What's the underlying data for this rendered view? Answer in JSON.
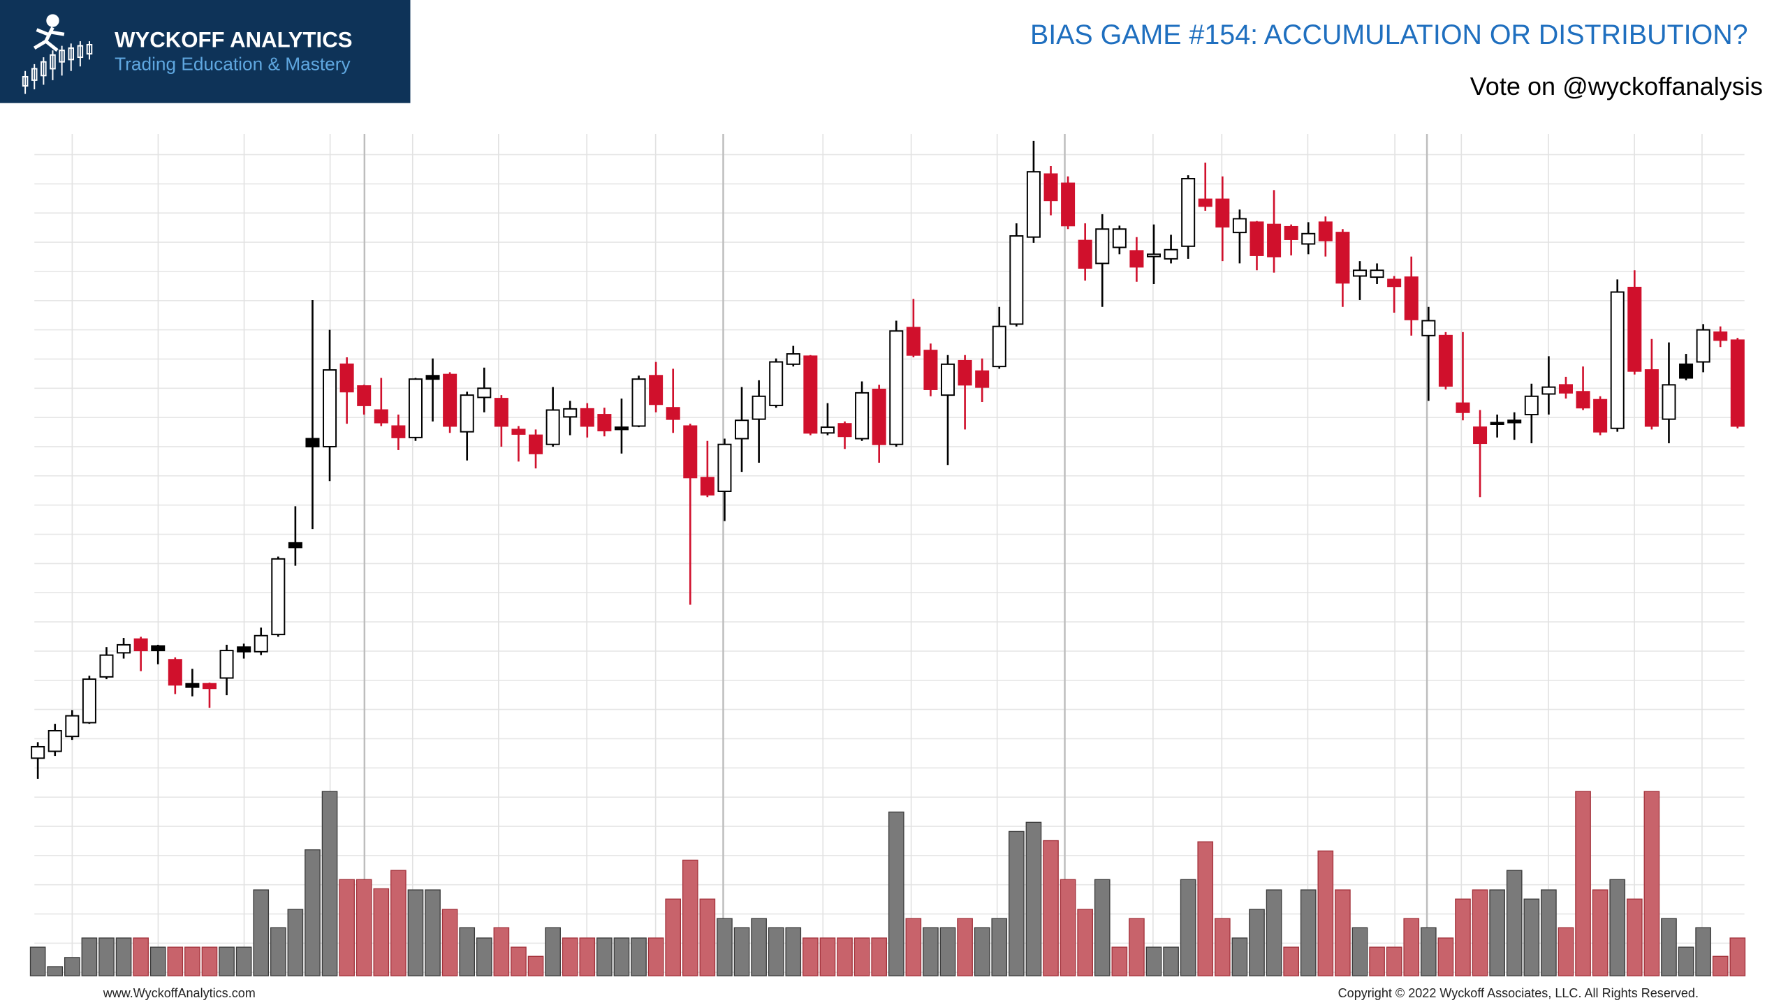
{
  "header": {
    "brand": "WYCKOFF ANALYTICS",
    "tagline": "Trading Education & Mastery",
    "title": "BIAS GAME #154: ACCUMULATION OR DISTRIBUTION?",
    "subtitle": "Vote on @wyckoffanalysis"
  },
  "footer": {
    "website": "www.WyckoffAnalytics.com",
    "copyright": "Copyright © 2022 Wyckoff Associates, LLC. All Rights Reserved."
  },
  "chart_data": {
    "type": "candlestick",
    "open": [
      38,
      44,
      57,
      69,
      109,
      130,
      142,
      136,
      124,
      103,
      103,
      108,
      135,
      131,
      146,
      226,
      317,
      310,
      382,
      363,
      342,
      328,
      318,
      372,
      373,
      323,
      353,
      352,
      325,
      320,
      312,
      336,
      343,
      338,
      327,
      328,
      372,
      344,
      328,
      283,
      271,
      317,
      334,
      346,
      382,
      389,
      322,
      330,
      317,
      360,
      312,
      414,
      394,
      355,
      385,
      376,
      380,
      417,
      493,
      548,
      540,
      490,
      470,
      484,
      481,
      476,
      474,
      485,
      526,
      526,
      497,
      506,
      504,
      502,
      487,
      506,
      497,
      459,
      458,
      456,
      458,
      407,
      407,
      348,
      327,
      331,
      333,
      338,
      356,
      364,
      358,
      351,
      326,
      449,
      377,
      334,
      382,
      384,
      410,
      403
    ],
    "high": [
      52,
      68,
      80,
      110,
      135,
      143,
      144,
      137,
      126,
      116,
      104,
      137,
      138,
      152,
      214,
      258,
      438,
      412,
      388,
      364,
      370,
      338,
      370,
      387,
      375,
      358,
      379,
      355,
      328,
      325,
      362,
      350,
      348,
      344,
      352,
      372,
      384,
      378,
      330,
      315,
      317,
      362,
      368,
      387,
      398,
      390,
      348,
      332,
      367,
      364,
      420,
      439,
      400,
      390,
      390,
      387,
      432,
      505,
      577,
      555,
      546,
      505,
      513,
      503,
      493,
      504,
      495,
      547,
      558,
      546,
      517,
      507,
      534,
      504,
      506,
      511,
      500,
      472,
      470,
      459,
      476,
      432,
      410,
      410,
      342,
      338,
      340,
      365,
      389,
      371,
      380,
      354,
      456,
      464,
      404,
      401,
      391,
      417,
      415,
      405
    ],
    "low": [
      20,
      40,
      54,
      68,
      107,
      125,
      114,
      120,
      94,
      92,
      82,
      93,
      125,
      128,
      144,
      206,
      238,
      280,
      330,
      338,
      328,
      307,
      315,
      332,
      322,
      298,
      340,
      310,
      297,
      291,
      310,
      320,
      318,
      319,
      304,
      327,
      340,
      322,
      172,
      266,
      245,
      288,
      296,
      344,
      380,
      320,
      320,
      308,
      315,
      296,
      310,
      388,
      354,
      294,
      325,
      349,
      378,
      415,
      488,
      512,
      500,
      455,
      432,
      478,
      454,
      452,
      470,
      474,
      516,
      472,
      470,
      464,
      462,
      477,
      478,
      476,
      432,
      438,
      452,
      427,
      407,
      350,
      360,
      333,
      266,
      318,
      316,
      313,
      338,
      352,
      342,
      320,
      323,
      373,
      325,
      313,
      368,
      375,
      397,
      326
    ],
    "close": [
      48,
      62,
      75,
      107,
      128,
      137,
      132,
      132,
      102,
      100,
      99,
      132,
      131,
      145,
      212,
      222,
      310,
      377,
      358,
      346,
      331,
      318,
      369,
      369,
      328,
      355,
      361,
      328,
      321,
      304,
      342,
      343,
      328,
      324,
      325,
      369,
      347,
      334,
      283,
      268,
      312,
      333,
      354,
      384,
      391,
      322,
      327,
      319,
      357,
      312,
      411,
      390,
      360,
      382,
      364,
      362,
      415,
      494,
      550,
      525,
      503,
      466,
      500,
      500,
      467,
      478,
      482,
      544,
      520,
      502,
      509,
      477,
      476,
      491,
      496,
      490,
      453,
      464,
      464,
      450,
      421,
      420,
      363,
      340,
      313,
      330,
      331,
      354,
      362,
      357,
      344,
      323,
      445,
      376,
      328,
      364,
      370,
      412,
      403,
      328
    ],
    "body_colors": [
      "#ffffff",
      "#ffffff",
      "#ffffff",
      "#ffffff",
      "#ffffff",
      "#ffffff",
      "#d0102c",
      "#000000",
      "#d0102c",
      "#000000",
      "#d0102c",
      "#ffffff",
      "#000000",
      "#ffffff",
      "#ffffff",
      "#000000",
      "#000000",
      "#ffffff",
      "#d0102c",
      "#d0102c",
      "#d0102c",
      "#d0102c",
      "#ffffff",
      "#000000",
      "#d0102c",
      "#ffffff",
      "#ffffff",
      "#d0102c",
      "#d0102c",
      "#d0102c",
      "#ffffff",
      "#ffffff",
      "#d0102c",
      "#d0102c",
      "#000000",
      "#ffffff",
      "#d0102c",
      "#d0102c",
      "#d0102c",
      "#d0102c",
      "#ffffff",
      "#ffffff",
      "#ffffff",
      "#ffffff",
      "#ffffff",
      "#d0102c",
      "#ffffff",
      "#d0102c",
      "#ffffff",
      "#d0102c",
      "#ffffff",
      "#d0102c",
      "#d0102c",
      "#ffffff",
      "#d0102c",
      "#d0102c",
      "#ffffff",
      "#ffffff",
      "#ffffff",
      "#d0102c",
      "#d0102c",
      "#d0102c",
      "#ffffff",
      "#ffffff",
      "#d0102c",
      "#ffffff",
      "#ffffff",
      "#ffffff",
      "#d0102c",
      "#d0102c",
      "#ffffff",
      "#d0102c",
      "#d0102c",
      "#d0102c",
      "#ffffff",
      "#d0102c",
      "#d0102c",
      "#ffffff",
      "#ffffff",
      "#d0102c",
      "#d0102c",
      "#ffffff",
      "#d0102c",
      "#d0102c",
      "#d0102c",
      "#000000",
      "#000000",
      "#ffffff",
      "#ffffff",
      "#d0102c",
      "#d0102c",
      "#d0102c",
      "#ffffff",
      "#d0102c",
      "#d0102c",
      "#ffffff",
      "#000000",
      "#ffffff",
      "#d0102c",
      "#d0102c"
    ],
    "ylim": [
      20,
      580
    ],
    "volume": {
      "values": [
        25,
        8,
        16,
        33,
        33,
        33,
        33,
        25,
        25,
        25,
        25,
        25,
        25,
        75,
        42,
        58,
        110,
        161,
        84,
        84,
        76,
        92,
        75,
        75,
        58,
        42,
        33,
        42,
        25,
        17,
        42,
        33,
        33,
        33,
        33,
        33,
        33,
        67,
        101,
        67,
        50,
        42,
        50,
        42,
        42,
        33,
        33,
        33,
        33,
        33,
        143,
        50,
        42,
        42,
        50,
        42,
        50,
        126,
        134,
        118,
        84,
        58,
        84,
        25,
        50,
        25,
        25,
        84,
        117,
        50,
        33,
        58,
        75,
        25,
        75,
        109,
        75,
        42,
        25,
        25,
        50,
        42,
        33,
        67,
        75,
        75,
        92,
        67,
        75,
        42,
        161,
        75,
        84,
        67,
        161,
        50,
        25,
        42,
        17,
        33
      ],
      "colors": [
        "#7a7a7a",
        "#7a7a7a",
        "#7a7a7a",
        "#7a7a7a",
        "#7a7a7a",
        "#7a7a7a",
        "#c8636b",
        "#7a7a7a",
        "#c8636b",
        "#c8636b",
        "#c8636b",
        "#7a7a7a",
        "#7a7a7a",
        "#7a7a7a",
        "#7a7a7a",
        "#7a7a7a",
        "#7a7a7a",
        "#7a7a7a",
        "#c8636b",
        "#c8636b",
        "#c8636b",
        "#c8636b",
        "#7a7a7a",
        "#7a7a7a",
        "#c8636b",
        "#7a7a7a",
        "#7a7a7a",
        "#c8636b",
        "#c8636b",
        "#c8636b",
        "#7a7a7a",
        "#c8636b",
        "#c8636b",
        "#7a7a7a",
        "#7a7a7a",
        "#7a7a7a",
        "#c8636b",
        "#c8636b",
        "#c8636b",
        "#c8636b",
        "#7a7a7a",
        "#7a7a7a",
        "#7a7a7a",
        "#7a7a7a",
        "#7a7a7a",
        "#c8636b",
        "#c8636b",
        "#c8636b",
        "#c8636b",
        "#c8636b",
        "#7a7a7a",
        "#c8636b",
        "#7a7a7a",
        "#7a7a7a",
        "#c8636b",
        "#7a7a7a",
        "#7a7a7a",
        "#7a7a7a",
        "#7a7a7a",
        "#c8636b",
        "#c8636b",
        "#c8636b",
        "#7a7a7a",
        "#c8636b",
        "#c8636b",
        "#7a7a7a",
        "#7a7a7a",
        "#7a7a7a",
        "#c8636b",
        "#c8636b",
        "#7a7a7a",
        "#7a7a7a",
        "#7a7a7a",
        "#c8636b",
        "#7a7a7a",
        "#c8636b",
        "#c8636b",
        "#7a7a7a",
        "#c8636b",
        "#c8636b",
        "#c8636b",
        "#7a7a7a",
        "#c8636b",
        "#c8636b",
        "#c8636b",
        "#7a7a7a",
        "#7a7a7a",
        "#7a7a7a",
        "#7a7a7a",
        "#c8636b",
        "#c8636b",
        "#c8636b",
        "#7a7a7a",
        "#c8636b",
        "#c8636b",
        "#7a7a7a",
        "#7a7a7a",
        "#7a7a7a",
        "#c8636b",
        "#c8636b"
      ],
      "ylim": [
        0,
        161
      ]
    }
  }
}
